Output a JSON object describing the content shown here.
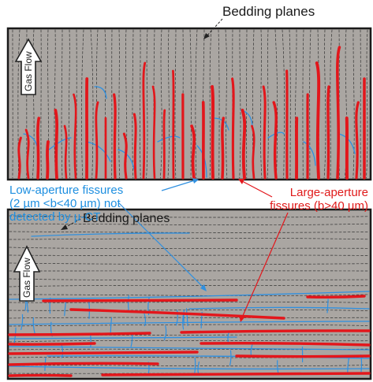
{
  "labels": {
    "bedding_planes_top": "Bedding planes",
    "bedding_planes_bottom": "Bedding planes",
    "low_aperture_line1": "Low-aperture fissures",
    "low_aperture_line2": "(2 µm <b<40 µm) not",
    "low_aperture_line3": "detected by µ-CT",
    "large_aperture_line1": "Large-aperture",
    "large_aperture_line2": "fissures (b>40 µm)",
    "gas_flow_top": "Gas Flow",
    "gas_flow_bottom": "Gas Flow"
  },
  "colors": {
    "panel_fill": "#aaa6a2",
    "panel_border": "#1a1a1a",
    "large_fissure": "#e3161b",
    "low_fissure": "#2f90e0",
    "bedding_line": "#333333"
  }
}
